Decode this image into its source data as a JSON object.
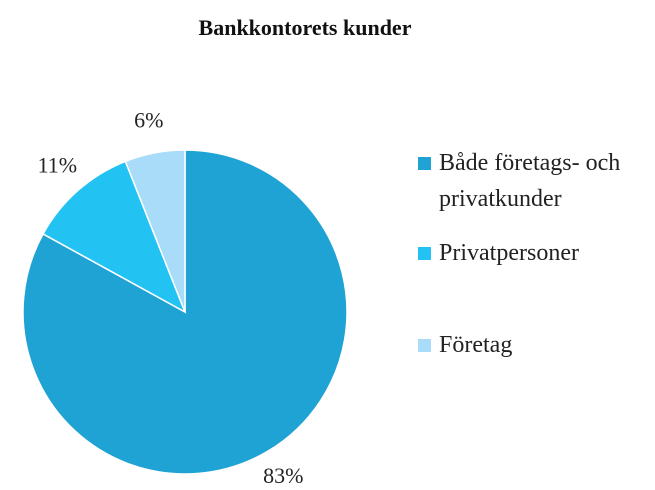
{
  "chart_data": {
    "type": "pie",
    "title": "Bankkontorets kunder",
    "categories": [
      "Både företags- och privatkunder",
      "Privatpersoner",
      "Företag"
    ],
    "values": [
      83,
      11,
      6
    ],
    "value_labels": [
      "83%",
      "11%",
      "6%"
    ],
    "colors": [
      "#1fa2d4",
      "#22c3f3",
      "#a9dcf8"
    ],
    "legend": "right"
  }
}
